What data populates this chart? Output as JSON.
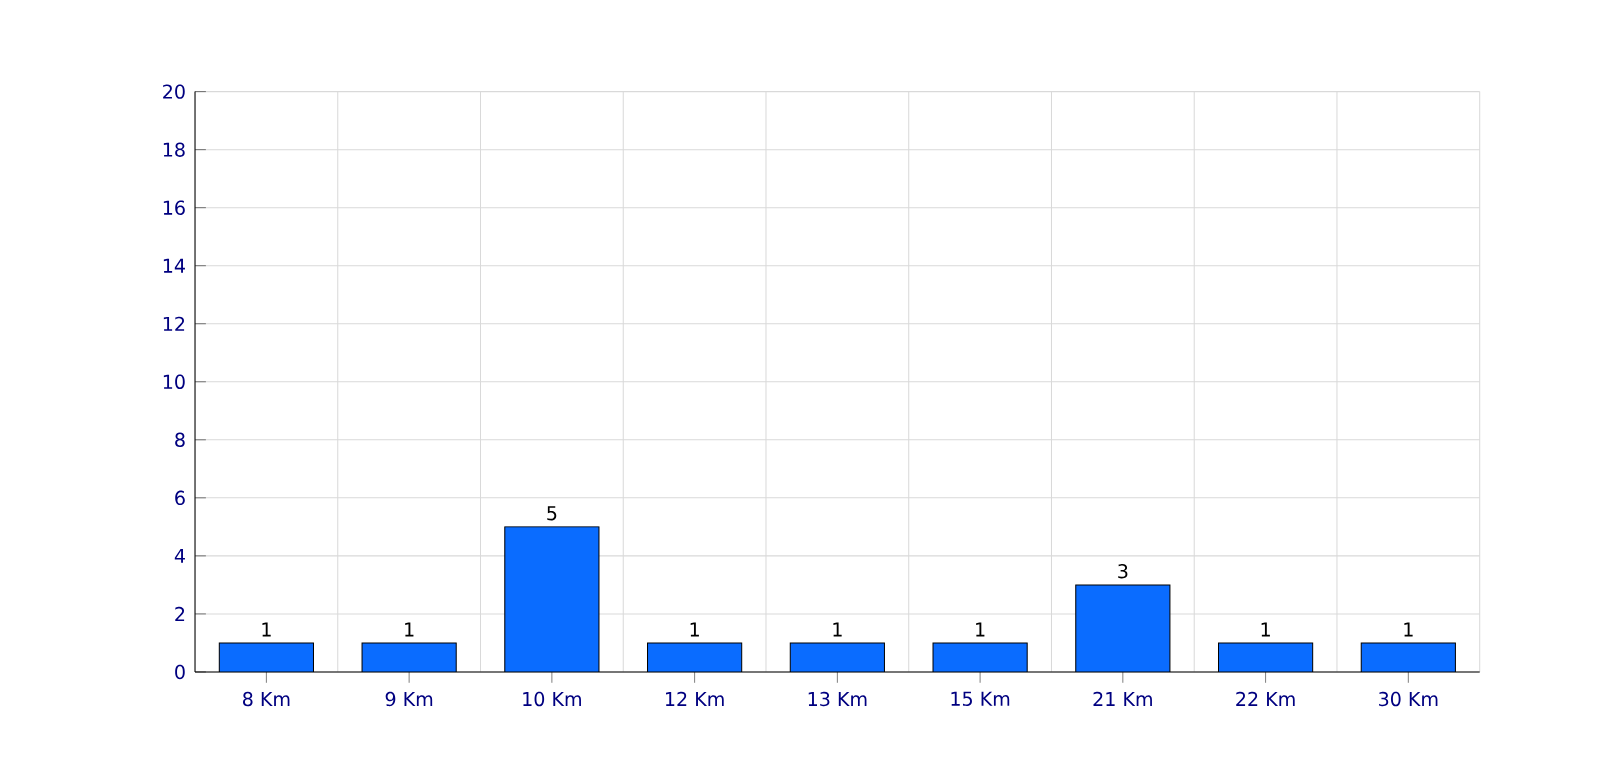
{
  "chart_data": {
    "type": "bar",
    "categories": [
      "8 Km",
      "9 Km",
      "10 Km",
      "12 Km",
      "13 Km",
      "15 Km",
      "21 Km",
      "22 Km",
      "30 Km"
    ],
    "values": [
      1,
      1,
      5,
      1,
      1,
      1,
      3,
      1,
      1
    ],
    "color": "#0a6cff",
    "ylim": [
      0,
      20
    ],
    "yticks": [
      0,
      2,
      4,
      6,
      8,
      10,
      12,
      14,
      16,
      18,
      20
    ],
    "grid": true,
    "data_labels": true
  }
}
